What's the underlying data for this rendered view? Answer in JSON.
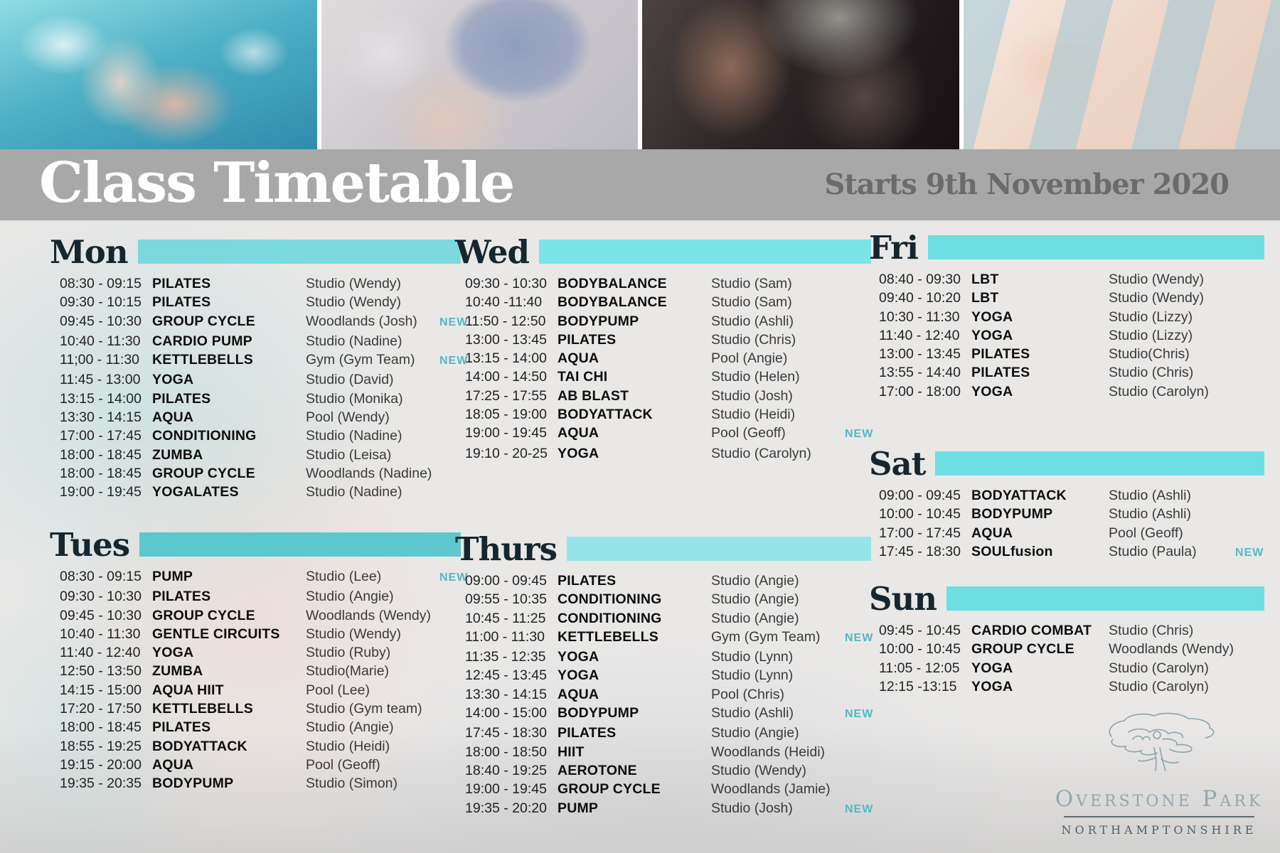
{
  "banner": {
    "title": "Class Timetable",
    "subtitle": "Starts 9th November 2020"
  },
  "labels": {
    "new": "NEW"
  },
  "photos": [
    "aqua-pool-class",
    "group-cycling-class",
    "boxing-training",
    "yoga-class"
  ],
  "colors": {
    "page_bg": "#e9e8e7",
    "banner_gray": "#a8a8a8",
    "banner_title": "#ffffff",
    "banner_subtitle": "#6b6b6b",
    "day_heading": "#16262e",
    "accent": "#62dce2",
    "badge_new": "#56b7c3",
    "text_time": "#222222",
    "text_class": "#0e0e0e",
    "text_location": "#3a3a3a",
    "logo_blue_gray": "#93a8ae",
    "logo_dark": "#515f66"
  },
  "logo": {
    "title": "Overstone Park",
    "subtitle": "NORTHAMPTONSHIRE"
  },
  "days": [
    {
      "key": "mon",
      "label": "Mon",
      "bar_color": "#72d8dc",
      "rows": [
        {
          "time": "08:30 - 09:15",
          "name": "PILATES",
          "location": "Studio (Wendy)",
          "new": false
        },
        {
          "time": "09:30 - 10:15",
          "name": "PILATES",
          "location": "Studio (Wendy)",
          "new": false
        },
        {
          "time": "09:45 - 10:30",
          "name": "GROUP CYCLE",
          "location": "Woodlands (Josh)",
          "new": true
        },
        {
          "time": "10:40 - 11:30",
          "name": "CARDIO PUMP",
          "location": "Studio (Nadine)",
          "new": false
        },
        {
          "time": "11;00 - 11:30",
          "name": "KETTLEBELLS",
          "location": "Gym (Gym Team)",
          "new": true
        },
        {
          "time": "11:45 - 13:00",
          "name": "YOGA",
          "location": "Studio (David)",
          "new": false
        },
        {
          "time": "13:15 - 14:00",
          "name": "PILATES",
          "location": "Studio (Monika)",
          "new": false
        },
        {
          "time": "13:30 - 14:15",
          "name": "AQUA",
          "location": "Pool (Wendy)",
          "new": false
        },
        {
          "time": "17:00 - 17:45",
          "name": "CONDITIONING",
          "location": "Studio (Nadine)",
          "new": false
        },
        {
          "time": "18:00 - 18:45",
          "name": "ZUMBA",
          "location": "Studio (Leisa)",
          "new": false
        },
        {
          "time": "18:00 - 18:45",
          "name": "GROUP CYCLE",
          "location": "Woodlands (Nadine)",
          "new": false
        },
        {
          "time": "19:00 - 19:45",
          "name": "YOGALATES",
          "location": "Studio (Nadine)",
          "new": false
        }
      ]
    },
    {
      "key": "tues",
      "label": "Tues",
      "bar_color": "#4fc5cb",
      "rows": [
        {
          "time": "08:30 - 09:15",
          "name": "PUMP",
          "location": "Studio (Lee)",
          "new": true
        },
        {
          "time": "09:30 - 10:30",
          "name": "PILATES",
          "location": "Studio (Angie)",
          "new": false
        },
        {
          "time": "09:45 - 10:30",
          "name": "GROUP CYCLE",
          "location": "Woodlands (Wendy)",
          "new": false
        },
        {
          "time": "10:40 - 11:30",
          "name": "GENTLE CIRCUITS",
          "location": "Studio (Wendy)",
          "new": false
        },
        {
          "time": "11:40 - 12:40",
          "name": "YOGA",
          "location": "Studio (Ruby)",
          "new": false
        },
        {
          "time": "12:50 - 13:50",
          "name": "ZUMBA",
          "location": "Studio(Marie)",
          "new": false
        },
        {
          "time": "14:15 - 15:00",
          "name": "AQUA HIIT",
          "location": "Pool (Lee)",
          "new": false
        },
        {
          "time": "17:20 - 17:50",
          "name": "KETTLEBELLS",
          "location": "Studio (Gym team)",
          "new": false
        },
        {
          "time": "18:00 - 18:45",
          "name": "PILATES",
          "location": "Studio (Angie)",
          "new": false
        },
        {
          "time": "18:55 - 19:25",
          "name": "BODYATTACK",
          "location": "Studio (Heidi)",
          "new": false
        },
        {
          "time": "19:15 - 20:00",
          "name": "AQUA",
          "location": "Pool (Geoff)",
          "new": false
        },
        {
          "time": "19:35 - 20:35",
          "name": "BODYPUMP",
          "location": "Studio (Simon)",
          "new": false
        }
      ]
    },
    {
      "key": "wed",
      "label": "Wed",
      "bar_color": "#70e3e6",
      "rows": [
        {
          "time": "09:30 - 10:30",
          "name": "BODYBALANCE",
          "location": "Studio (Sam)",
          "new": false
        },
        {
          "time": "10:40  -11:40",
          "name": "BODYBALANCE",
          "location": "Studio (Sam)",
          "new": false
        },
        {
          "time": "11:50 - 12:50",
          "name": "BODYPUMP",
          "location": "Studio (Ashli)",
          "new": false
        },
        {
          "time": "13:00 - 13:45",
          "name": "PILATES",
          "location": "Studio (Chris)",
          "new": false
        },
        {
          "time": "13:15 - 14:00",
          "name": "AQUA",
          "location": "Pool (Angie)",
          "new": false
        },
        {
          "time": "14:00 - 14:50",
          "name": "TAI CHI",
          "location": "Studio (Helen)",
          "new": false
        },
        {
          "time": "17:25 - 17:55",
          "name": "AB BLAST",
          "location": "Studio (Josh)",
          "new": false
        },
        {
          "time": "18:05 - 19:00",
          "name": "BODYATTACK",
          "location": "Studio (Heidi)",
          "new": false
        },
        {
          "time": "19:00 - 19:45",
          "name": "AQUA",
          "location": "Pool (Geoff)",
          "new": true
        },
        {
          "time": "19:10 - 20-25",
          "name": "YOGA",
          "location": "Studio (Carolyn)",
          "new": false
        }
      ]
    },
    {
      "key": "thurs",
      "label": "Thurs",
      "bar_color": "#8de4e8",
      "rows": [
        {
          "time": "09:00 - 09:45",
          "name": "PILATES",
          "location": "Studio (Angie)",
          "new": false
        },
        {
          "time": "09:55 - 10:35",
          "name": "CONDITIONING",
          "location": "Studio (Angie)",
          "new": false
        },
        {
          "time": "10:45 - 11:25",
          "name": "CONDITIONING",
          "location": "Studio (Angie)",
          "new": false
        },
        {
          "time": "11:00 - 11:30",
          "name": "KETTLEBELLS",
          "location": "Gym (Gym Team)",
          "new": true
        },
        {
          "time": "11:35 - 12:35",
          "name": "YOGA",
          "location": "Studio (Lynn)",
          "new": false
        },
        {
          "time": "12:45 - 13:45",
          "name": "YOGA",
          "location": "Studio (Lynn)",
          "new": false
        },
        {
          "time": "13:30 - 14:15",
          "name": "AQUA",
          "location": "Pool (Chris)",
          "new": false
        },
        {
          "time": "14:00 - 15:00",
          "name": "BODYPUMP",
          "location": "Studio (Ashli)",
          "new": true
        },
        {
          "time": "17:45 - 18:30",
          "name": "PILATES",
          "location": "Studio (Angie)",
          "new": false
        },
        {
          "time": "18:00 - 18:50",
          "name": "HIIT",
          "location": "Woodlands (Heidi)",
          "new": false
        },
        {
          "time": "18:40 - 19:25",
          "name": "AEROTONE",
          "location": "Studio (Wendy)",
          "new": false
        },
        {
          "time": "19:00 - 19:45",
          "name": "GROUP CYCLE",
          "location": "Woodlands (Jamie)",
          "new": false
        },
        {
          "time": "19:35 - 20:20",
          "name": "PUMP",
          "location": "Studio (Josh)",
          "new": true
        }
      ]
    },
    {
      "key": "fri",
      "label": "Fri",
      "bar_color": "#62dce2",
      "rows": [
        {
          "time": "08:40 - 09:30",
          "name": "LBT",
          "location": "Studio (Wendy)",
          "new": false
        },
        {
          "time": "09:40 - 10:20",
          "name": "LBT",
          "location": "Studio (Wendy)",
          "new": false
        },
        {
          "time": "10:30 - 11:30",
          "name": "YOGA",
          "location": "Studio (Lizzy)",
          "new": false
        },
        {
          "time": "11:40 - 12:40",
          "name": "YOGA",
          "location": "Studio (Lizzy)",
          "new": false
        },
        {
          "time": "13:00 - 13:45",
          "name": "PILATES",
          "location": "Studio(Chris)",
          "new": false
        },
        {
          "time": "13:55 - 14:40",
          "name": "PILATES",
          "location": "Studio (Chris)",
          "new": false
        },
        {
          "time": "17:00 - 18:00",
          "name": "YOGA",
          "location": "Studio (Carolyn)",
          "new": false
        }
      ]
    },
    {
      "key": "sat",
      "label": "Sat",
      "bar_color": "#62dce2",
      "rows": [
        {
          "time": "09:00 - 09:45",
          "name": "BODYATTACK",
          "location": "Studio (Ashli)",
          "new": false
        },
        {
          "time": "10:00 - 10:45",
          "name": "BODYPUMP",
          "location": "Studio (Ashli)",
          "new": false
        },
        {
          "time": "17:00 - 17:45",
          "name": "AQUA",
          "location": "Pool (Geoff)",
          "new": false
        },
        {
          "time": "17:45 - 18:30",
          "name": "SOULfusion",
          "location": "Studio (Paula)",
          "new": true
        }
      ]
    },
    {
      "key": "sun",
      "label": "Sun",
      "bar_color": "#62dce2",
      "rows": [
        {
          "time": "09:45 - 10:45",
          "name": "CARDIO COMBAT",
          "location": "Studio (Chris)",
          "new": false
        },
        {
          "time": "10:00 - 10:45",
          "name": "GROUP CYCLE",
          "location": "Woodlands (Wendy)",
          "new": false
        },
        {
          "time": "11:05 - 12:05",
          "name": "YOGA",
          "location": "Studio (Carolyn)",
          "new": false
        },
        {
          "time": "12:15 -13:15",
          "name": "YOGA",
          "location": "Studio (Carolyn)",
          "new": false
        }
      ]
    }
  ]
}
